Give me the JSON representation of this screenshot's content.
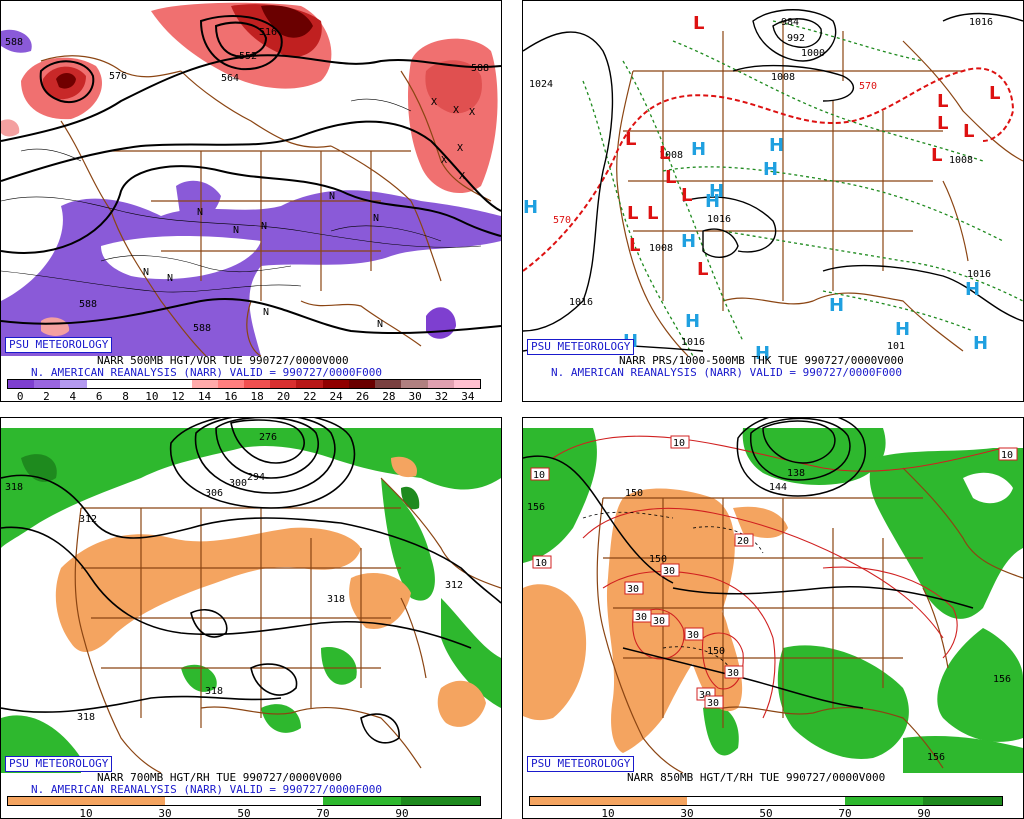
{
  "panels": [
    {
      "id": "p1",
      "badge": "PSU METEOROLOGY",
      "caption1": "NARR 500MB HGT/VOR TUE 990727/0000V000",
      "caption2": "N. AMERICAN REANALYSIS (NARR) VALID = 990727/0000F000",
      "colorbar": {
        "colors": [
          "#7e3fd0",
          "#9a66e0",
          "#b49af0",
          "#ffffff",
          "#ffffff",
          "#ffffff",
          "#ffffff",
          "#ffaaaa",
          "#ff7f7f",
          "#f05050",
          "#d83030",
          "#b81818",
          "#900000",
          "#6a0000",
          "#7a4040",
          "#b08080",
          "#e0a0b0",
          "#ffc0d0"
        ],
        "ticks": [
          "0",
          "2",
          "4",
          "6",
          "8",
          "10",
          "12",
          "14",
          "16",
          "18",
          "20",
          "22",
          "24",
          "26",
          "28",
          "30",
          "32",
          "34"
        ]
      },
      "contour_labels": [
        "588",
        "576",
        "516",
        "552",
        "564",
        "588",
        "588",
        "588"
      ],
      "markers_N": 9,
      "markers_X": 6
    },
    {
      "id": "p2",
      "badge": "PSU METEOROLOGY",
      "caption1": "NARR PRS/1000-500MB THK TUE 990727/0000V000",
      "caption2": "N. AMERICAN REANALYSIS (NARR) VALID = 990727/0000F000",
      "contour_labels": [
        "1024",
        "984",
        "992",
        "1000",
        "1008",
        "1016",
        "1016",
        "1008",
        "1008",
        "1016",
        "1016",
        "1008",
        "101",
        "570",
        "570",
        "1016"
      ],
      "L_label": "L",
      "H_label": "H"
    },
    {
      "id": "p3",
      "badge": "PSU METEOROLOGY",
      "caption1": "NARR 700MB HGT/RH TUE 990727/0000V000",
      "caption2": "N. AMERICAN REANALYSIS (NARR) VALID = 990727/0000F000",
      "colorbar": {
        "colors": [
          "#f4a460",
          "#f4a460",
          "#ffffff",
          "#ffffff",
          "#2eb82e",
          "#1e8a1e"
        ],
        "ticks": [
          "10",
          "30",
          "50",
          "70",
          "90"
        ]
      },
      "contour_labels": [
        "318",
        "312",
        "306",
        "300",
        "294",
        "276",
        "318",
        "318",
        "312",
        "318"
      ]
    },
    {
      "id": "p4",
      "badge": "PSU METEOROLOGY",
      "caption1": "NARR 850MB HGT/T/RH TUE 990727/0000V000",
      "caption2": "",
      "colorbar": {
        "colors": [
          "#f4a460",
          "#f4a460",
          "#ffffff",
          "#ffffff",
          "#2eb82e",
          "#1e8a1e"
        ],
        "ticks": [
          "10",
          "30",
          "50",
          "70",
          "90"
        ]
      },
      "contour_labels": [
        "10",
        "10",
        "10",
        "10",
        "20",
        "30",
        "30",
        "30",
        "30",
        "30",
        "30",
        "30",
        "30",
        "150",
        "150",
        "150",
        "144",
        "138",
        "156",
        "156",
        "156"
      ]
    }
  ]
}
